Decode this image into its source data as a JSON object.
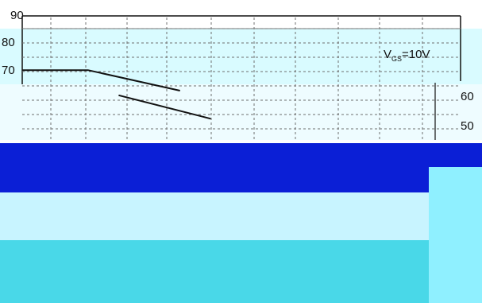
{
  "chart_data": {
    "type": "line",
    "title": "",
    "xlabel": "",
    "ylabel": "",
    "y_tick_labels_left": [
      "90",
      "80",
      "70"
    ],
    "y_tick_labels_right": [
      "60",
      "50"
    ],
    "annotation": {
      "text_main": "V",
      "text_sub": "GS",
      "text_tail": "=10V"
    },
    "grid": true,
    "series": [
      {
        "color": "#111111",
        "points": [
          {
            "x": 0.0,
            "y": 74.7
          },
          {
            "x": 1.5,
            "y": 74.7
          },
          {
            "x": 3.6,
            "y": 68.9
          }
        ]
      },
      {
        "color": "#111111",
        "points": [
          {
            "x": 2.2,
            "y": 67.6
          },
          {
            "x": 4.3,
            "y": 61.0
          }
        ]
      }
    ],
    "xlim": [
      0,
      10
    ],
    "ylim": [
      55,
      90
    ]
  },
  "colors": {
    "band_light": "#d9fbff",
    "band_deep": "#0b1fd6",
    "band_teal": "#49d8e8",
    "band_cyan": "#8ff0ff",
    "grid": "#7a7a7a",
    "axis": "#111111"
  }
}
